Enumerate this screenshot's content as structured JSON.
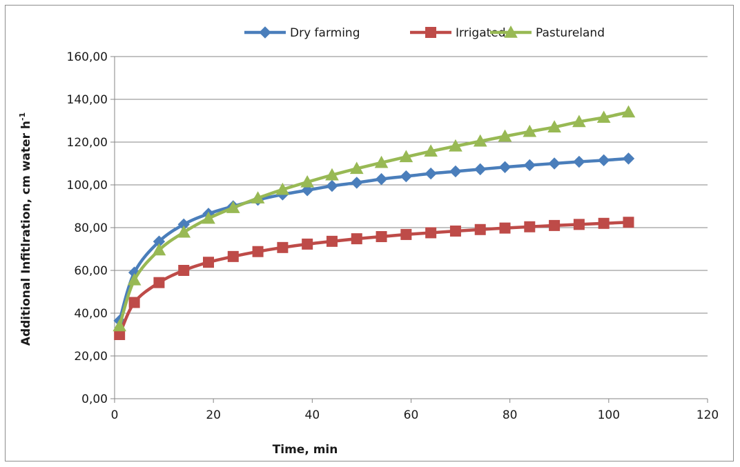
{
  "chart_data": {
    "type": "line",
    "title": "",
    "xlabel": "Time, min",
    "ylabel": "Additional Infitlration, cm water h",
    "ylabel_superscript": "-1",
    "xlim": [
      0,
      120
    ],
    "ylim": [
      0,
      160
    ],
    "x_ticks": [
      0,
      20,
      40,
      60,
      80,
      100,
      120
    ],
    "x_tick_labels": [
      "0",
      "20",
      "40",
      "60",
      "80",
      "100",
      "120"
    ],
    "y_ticks": [
      0,
      20,
      40,
      60,
      80,
      100,
      120,
      140,
      160
    ],
    "y_tick_labels": [
      "0,00",
      "20,00",
      "40,00",
      "60,00",
      "80,00",
      "100,00",
      "120,00",
      "140,00",
      "160,00"
    ],
    "grid": "horizontal",
    "legend_position": "top",
    "x": [
      1,
      4,
      9,
      14,
      19,
      24,
      29,
      34,
      39,
      44,
      49,
      54,
      59,
      64,
      69,
      74,
      79,
      84,
      89,
      94,
      99,
      104
    ],
    "series": [
      {
        "name": "Dry farming",
        "color": "#4a7ebb",
        "marker": "diamond",
        "values": [
          36.5,
          59.0,
          73.5,
          81.5,
          86.5,
          90.0,
          93.0,
          95.5,
          97.5,
          99.5,
          101.0,
          102.7,
          104.0,
          105.3,
          106.3,
          107.3,
          108.3,
          109.2,
          110.0,
          110.8,
          111.5,
          112.3
        ]
      },
      {
        "name": "Irrigated",
        "color": "#be4b48",
        "marker": "square",
        "values": [
          30.0,
          45.0,
          54.3,
          60.0,
          63.8,
          66.5,
          68.8,
          70.7,
          72.3,
          73.6,
          74.8,
          75.8,
          76.8,
          77.6,
          78.4,
          79.1,
          79.8,
          80.4,
          81.0,
          81.5,
          82.0,
          82.5
        ]
      },
      {
        "name": "Pastureland",
        "color": "#98b954",
        "marker": "triangle",
        "values": [
          34.0,
          55.5,
          69.5,
          77.8,
          84.3,
          89.3,
          93.8,
          97.8,
          101.3,
          104.6,
          107.6,
          110.4,
          113.1,
          115.7,
          118.1,
          120.4,
          122.7,
          124.9,
          127.0,
          129.5,
          131.5,
          134.0
        ]
      }
    ]
  }
}
